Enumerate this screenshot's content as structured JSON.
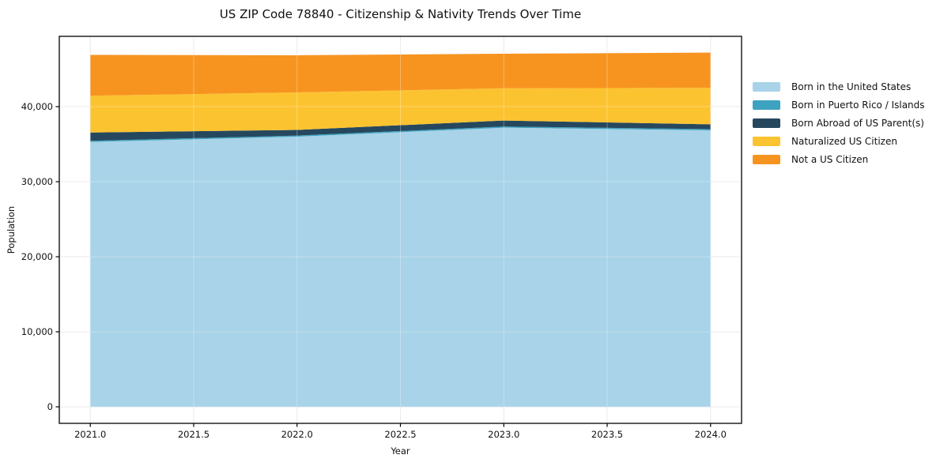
{
  "title": "US ZIP Code 78840 - Citizenship & Nativity Trends Over Time",
  "chart_data": {
    "type": "area",
    "stacked": true,
    "title": "US ZIP Code 78840 - Citizenship & Nativity Trends Over Time",
    "xlabel": "Year",
    "ylabel": "Population",
    "x": [
      2021,
      2022,
      2023,
      2024
    ],
    "series": [
      {
        "name": "Born in the United States",
        "color": "#a8d3e8",
        "values": [
          35300,
          36000,
          37200,
          36850
        ]
      },
      {
        "name": "Born in Puerto Rico / Islands",
        "color": "#3ea3c1",
        "values": [
          150,
          150,
          150,
          150
        ]
      },
      {
        "name": "Born Abroad of US Parent(s)",
        "color": "#26485e",
        "values": [
          1100,
          750,
          800,
          650
        ]
      },
      {
        "name": "Naturalized US Citizen",
        "color": "#fcc330",
        "values": [
          4900,
          5000,
          4300,
          4850
        ]
      },
      {
        "name": "Not a US Citizen",
        "color": "#f79420",
        "values": [
          5450,
          4950,
          4600,
          4700
        ]
      }
    ],
    "totals": [
      46900,
      46850,
      47050,
      47200
    ],
    "xlim": [
      2020.85,
      2024.15
    ],
    "ylim": [
      -2200,
      49370
    ],
    "xticks": [
      2021.0,
      2021.5,
      2022.0,
      2022.5,
      2023.0,
      2023.5,
      2024.0
    ],
    "xtick_labels": [
      "2021.0",
      "2021.5",
      "2022.0",
      "2022.5",
      "2023.0",
      "2023.5",
      "2024.0"
    ],
    "yticks": [
      0,
      10000,
      20000,
      30000,
      40000
    ],
    "ytick_labels": [
      "0",
      "10,000",
      "20,000",
      "30,000",
      "40,000"
    ],
    "grid": true,
    "legend_position": "right",
    "spine_color": "#000000",
    "grid_color_under": "#e3e3e3",
    "grid_color_over": "rgba(255,255,255,0.30)"
  }
}
